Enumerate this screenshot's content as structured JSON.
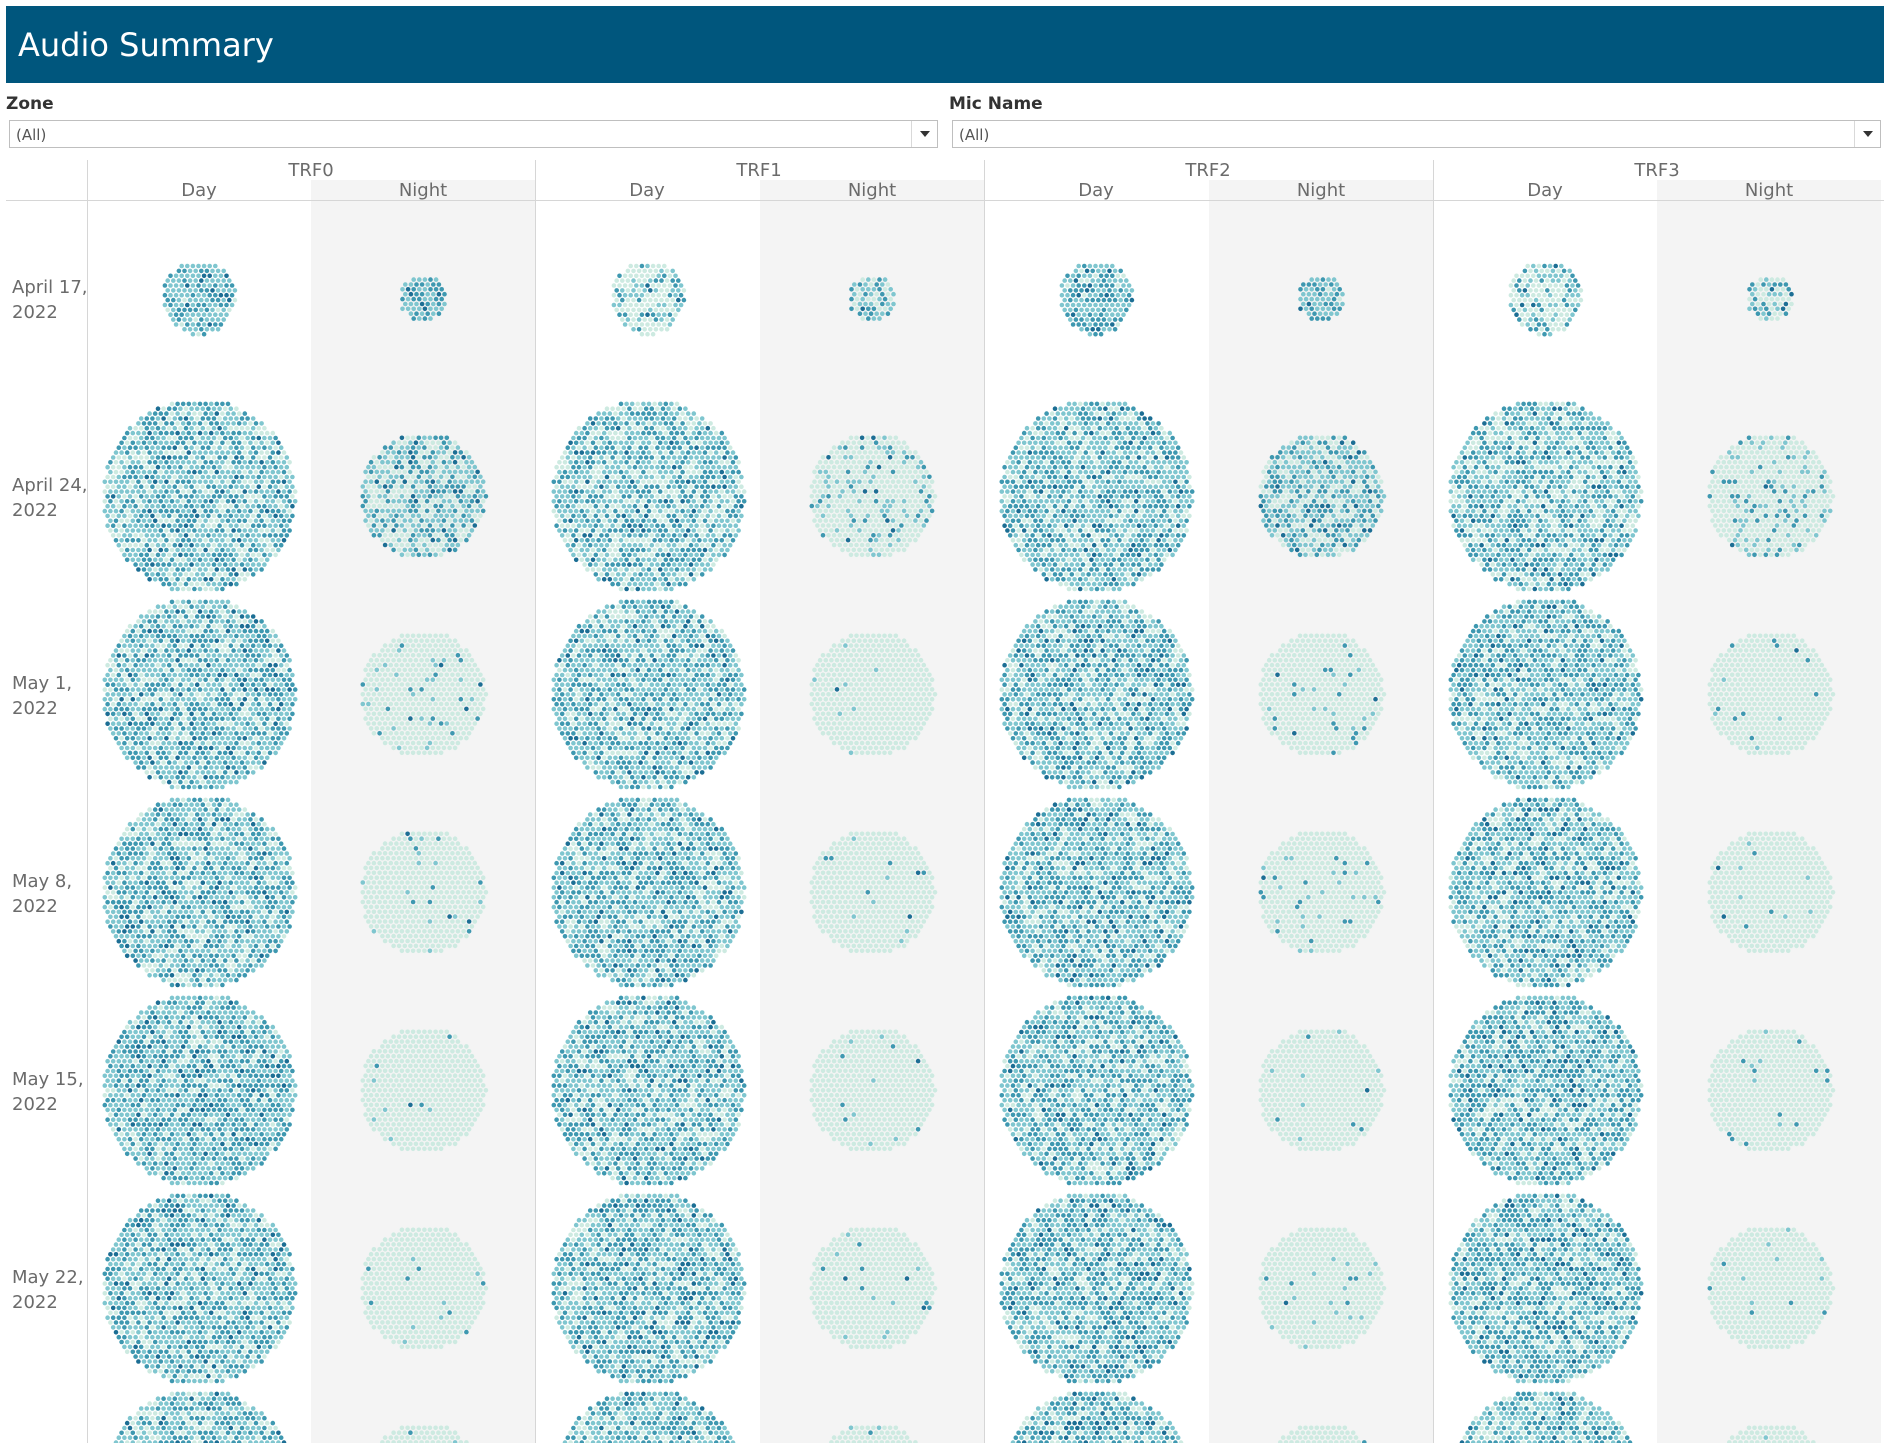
{
  "header": {
    "title": "Audio Summary"
  },
  "filters": {
    "zone": {
      "label": "Zone",
      "value": "(All)"
    },
    "mic": {
      "label": "Mic Name",
      "value": "(All)"
    }
  },
  "colors": {
    "header_bg": "#00567d",
    "low": "#cdeae1",
    "mid": "#7fc6cf",
    "high": "#3e98b0",
    "peak": "#1c6e94"
  },
  "chart_data": {
    "type": "packed-bubble",
    "columns": [
      "TRF0",
      "TRF1",
      "TRF2",
      "TRF3"
    ],
    "sub_columns": [
      "Day",
      "Night"
    ],
    "rows": [
      {
        "line1": "April 17,",
        "line2": "2022"
      },
      {
        "line1": "April 24,",
        "line2": "2022"
      },
      {
        "line1": "May 1,",
        "line2": "2022"
      },
      {
        "line1": "May 8,",
        "line2": "2022"
      },
      {
        "line1": "May 15,",
        "line2": "2022"
      },
      {
        "line1": "May 22,",
        "line2": "2022"
      },
      {
        "line1": "",
        "line2": ""
      }
    ],
    "relative_cluster_size": [
      [
        [
          0.38,
          0.24
        ],
        [
          0.38,
          0.24
        ],
        [
          0.38,
          0.24
        ],
        [
          0.38,
          0.24
        ]
      ],
      [
        [
          1.0,
          0.65
        ],
        [
          1.0,
          0.65
        ],
        [
          1.0,
          0.65
        ],
        [
          1.0,
          0.65
        ]
      ],
      [
        [
          1.0,
          0.65
        ],
        [
          1.0,
          0.65
        ],
        [
          1.0,
          0.65
        ],
        [
          1.0,
          0.65
        ]
      ],
      [
        [
          1.0,
          0.65
        ],
        [
          1.0,
          0.65
        ],
        [
          1.0,
          0.65
        ],
        [
          1.0,
          0.65
        ]
      ],
      [
        [
          1.0,
          0.65
        ],
        [
          1.0,
          0.65
        ],
        [
          1.0,
          0.65
        ],
        [
          1.0,
          0.65
        ]
      ],
      [
        [
          1.0,
          0.65
        ],
        [
          1.0,
          0.65
        ],
        [
          1.0,
          0.65
        ],
        [
          1.0,
          0.65
        ]
      ],
      [
        [
          1.0,
          0.65
        ],
        [
          1.0,
          0.65
        ],
        [
          1.0,
          0.65
        ],
        [
          1.0,
          0.65
        ]
      ]
    ],
    "intensity_level": [
      [
        [
          0.6,
          0.8
        ],
        [
          0.3,
          0.4
        ],
        [
          0.6,
          0.6
        ],
        [
          0.3,
          0.3
        ]
      ],
      [
        [
          0.5,
          0.4
        ],
        [
          0.45,
          0.15
        ],
        [
          0.5,
          0.45
        ],
        [
          0.45,
          0.12
        ]
      ],
      [
        [
          0.5,
          0.05
        ],
        [
          0.5,
          0.02
        ],
        [
          0.5,
          0.05
        ],
        [
          0.5,
          0.02
        ]
      ],
      [
        [
          0.5,
          0.03
        ],
        [
          0.5,
          0.02
        ],
        [
          0.5,
          0.03
        ],
        [
          0.5,
          0.02
        ]
      ],
      [
        [
          0.55,
          0.02
        ],
        [
          0.5,
          0.02
        ],
        [
          0.5,
          0.02
        ],
        [
          0.5,
          0.02
        ]
      ],
      [
        [
          0.5,
          0.02
        ],
        [
          0.5,
          0.02
        ],
        [
          0.5,
          0.02
        ],
        [
          0.5,
          0.02
        ]
      ],
      [
        [
          0.5,
          0.02
        ],
        [
          0.5,
          0.02
        ],
        [
          0.5,
          0.02
        ],
        [
          0.5,
          0.02
        ]
      ]
    ]
  }
}
